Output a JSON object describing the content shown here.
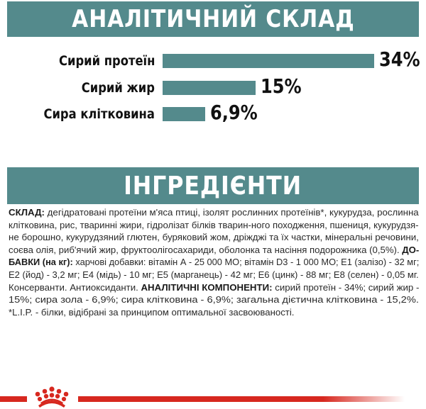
{
  "colors": {
    "teal": "#548a8c",
    "red": "#d7281f",
    "text": "#1a1a1a"
  },
  "analytics_header": "АНАЛІТИЧНИЙ СКЛАД",
  "ingredients_header": "ІНГРЕДІЄНТИ",
  "chart_data": {
    "type": "bar",
    "orientation": "horizontal",
    "title": "АНАЛІТИЧНИЙ СКЛАД",
    "categories": [
      "Сирий протеїн",
      "Сирий жир",
      "Сира клітковина"
    ],
    "values": [
      34,
      15,
      6.9
    ],
    "value_labels": [
      "34%",
      "15%",
      "6,9%"
    ],
    "unit": "%",
    "xlabel": "",
    "ylabel": "",
    "grid": false,
    "legend": null,
    "xlim": [
      0,
      34
    ]
  },
  "ingredients": {
    "lines": [
      {
        "bold": "СКЛАД:",
        "text": " дегідратовані протеїни м'яса птиці, ізолят рослинних протеїнів*, кукурудза, рослинна"
      },
      {
        "bold": "",
        "text": "клітковина, рис, тваринні жири, гідролізат білків тварин-ного походження, пшениця, кукурудзя-"
      },
      {
        "bold": "",
        "text": "не борошно, кукурудзяний глютен, буряковий жом, дріжджі та їх частки, мінеральні речовини,"
      },
      {
        "bold": "",
        "text": "соєва олія, риб'ячий жир, фруктоолігосахариди, оболонка та насіння подорожника (0,5%). ",
        "bold_after": "ДО-"
      },
      {
        "bold": "БАВКИ (на кг):",
        "text": " харчові добавки: вітамін А - 25 000 МО; вітамін D3 - 1 000 МО; Е1 (залізо) - 32 мг;"
      },
      {
        "bold": "",
        "text": "Е2 (йод) - 3,2 мг; Е4 (мідь) - 10 мг; Е5 (марганець) - 42 мг; Е6 (цинк) - 88 мг; Е8 (селен) - 0,05 мг."
      },
      {
        "bold": "",
        "text": "Консерванти. Антиоксиданти. ",
        "bold_after": "АНАЛІТИЧНІ КОМПОНЕНТИ:",
        "text_after": " сирий протеїн - 34%; сирий жир -"
      },
      {
        "bold": "",
        "text": "15%; сира зола - 6,9%; сира клітковина - 6,9%; загальна дієтична клітковина - 15,2%."
      },
      {
        "bold": "",
        "text": "*L.I.P. - білки, відібрані за принципом оптимальної засвоюваності."
      }
    ]
  },
  "logo": {
    "icon": "royal-canin-crown-icon"
  }
}
